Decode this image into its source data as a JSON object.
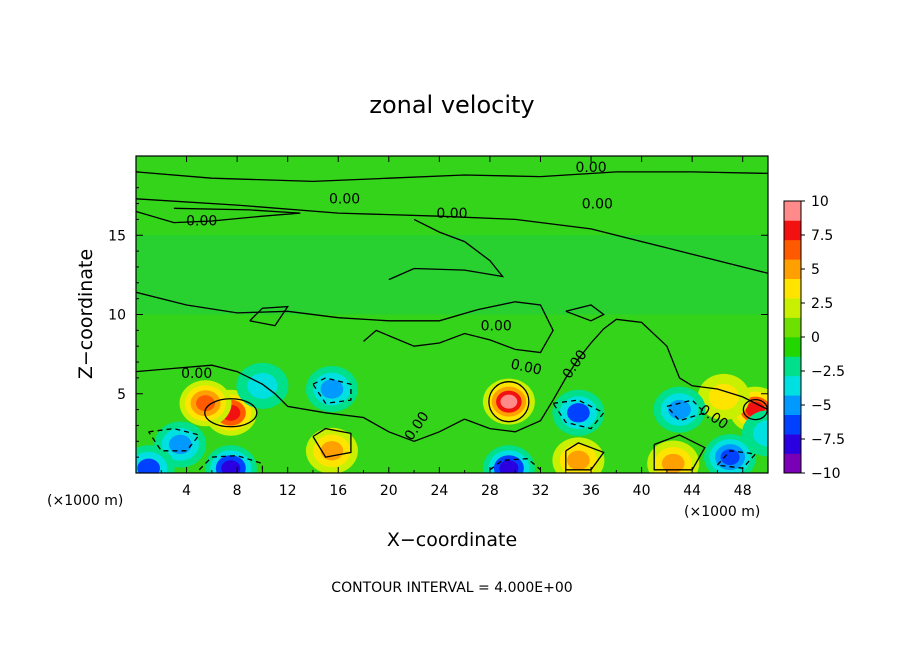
{
  "chart_data": {
    "type": "heatmap",
    "title": "zonal velocity",
    "xlabel": "X−coordinate",
    "ylabel": "Z−coordinate",
    "x_unit": "(×1000 m)",
    "z_unit": "(×1000 m)",
    "xlim": [
      0,
      50
    ],
    "ylim": [
      0,
      20
    ],
    "x_ticks": [
      4,
      8,
      12,
      16,
      20,
      24,
      28,
      32,
      36,
      40,
      44,
      48
    ],
    "x_tick_labels": [
      "4",
      "8",
      "12",
      "16",
      "20",
      "24",
      "28",
      "32",
      "36",
      "40",
      "44",
      "48"
    ],
    "y_ticks": [
      5,
      10,
      15
    ],
    "y_tick_labels": [
      "5",
      "10",
      "15"
    ],
    "colorbar": {
      "min": -10,
      "max": 10,
      "ticks": [
        10,
        7.5,
        5,
        2.5,
        0,
        -2.5,
        -5,
        -7.5,
        -10
      ],
      "tick_labels": [
        "10",
        "7.5",
        "5",
        "2.5",
        "0",
        "−2.5",
        "−5",
        "−7.5",
        "−10"
      ],
      "colors": [
        "#7a00b5",
        "#2b00e0",
        "#0040ff",
        "#0099ff",
        "#00e0e0",
        "#00e08a",
        "#22d600",
        "#6ee000",
        "#c8f000",
        "#ffe400",
        "#ffa000",
        "#ff5a00",
        "#f21010",
        "#ff8a8a"
      ]
    },
    "contour_interval": "CONTOUR INTERVAL = 4.000E+00",
    "contour_label": "0.00",
    "features": [
      {
        "x": 7.5,
        "z": 3.8,
        "u": 8.5
      },
      {
        "x": 5.5,
        "z": 4.4,
        "u": 7.0
      },
      {
        "x": 29.5,
        "z": 4.5,
        "u": 9.0
      },
      {
        "x": 15.5,
        "z": 1.4,
        "u": 4.5
      },
      {
        "x": 35.0,
        "z": 0.8,
        "u": 5.0
      },
      {
        "x": 42.5,
        "z": 0.6,
        "u": 5.5
      },
      {
        "x": 49.0,
        "z": 4.0,
        "u": 8.0
      },
      {
        "x": 46.5,
        "z": 4.8,
        "u": 3.5
      },
      {
        "x": 7.5,
        "z": 0.3,
        "u": -8.0
      },
      {
        "x": 3.5,
        "z": 1.8,
        "u": -5.0
      },
      {
        "x": 29.5,
        "z": 0.3,
        "u": -8.5
      },
      {
        "x": 35.0,
        "z": 3.8,
        "u": -6.0
      },
      {
        "x": 15.5,
        "z": 5.3,
        "u": -5.0
      },
      {
        "x": 47.0,
        "z": 1.0,
        "u": -6.5
      },
      {
        "x": 43.0,
        "z": 4.0,
        "u": -5.0
      },
      {
        "x": 1.0,
        "z": 0.3,
        "u": -6.0
      },
      {
        "x": 10.0,
        "z": 5.5,
        "u": -3.5
      },
      {
        "x": 50.0,
        "z": 2.5,
        "u": -3.5
      }
    ]
  }
}
